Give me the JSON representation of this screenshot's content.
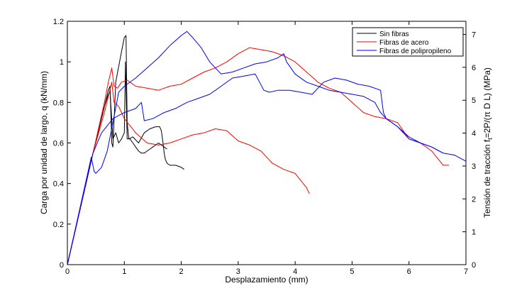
{
  "chart_data": {
    "type": "line",
    "title": "",
    "xlabel": "Desplazamiento (mm)",
    "ylabel": "Carga por unidad de largo, q (kN/mm)",
    "y2label": "Tensión de tracción f_t=2P/(π D L) (MPa)",
    "xlim": [
      0,
      7
    ],
    "ylim": [
      0,
      1.2
    ],
    "y2lim": [
      0,
      7.4
    ],
    "xticks": [
      "0",
      "1",
      "2",
      "3",
      "4",
      "5",
      "6",
      "7"
    ],
    "yticks": [
      "0",
      "0.2",
      "0.4",
      "0.6",
      "0.8",
      "1",
      "1.2"
    ],
    "y2ticks": [
      "0",
      "1",
      "2",
      "3",
      "4",
      "5",
      "6",
      "7"
    ],
    "grid": false,
    "legend": "top-right",
    "series": [
      {
        "name": "Sin fibras",
        "color": "#000000",
        "x": [
          0,
          0.45,
          0.65,
          0.72,
          0.75,
          0.78,
          0.8,
          0.85,
          0.95,
          1.0,
          1.03,
          1.05,
          1.08,
          1.15,
          1.25,
          1.35,
          1.45,
          1.55,
          1.62,
          1.65,
          1.68,
          1.7,
          1.72,
          1.75,
          1.8,
          1.9,
          2.0,
          2.05
        ],
        "y": [
          0,
          0.55,
          0.78,
          0.86,
          0.88,
          0.6,
          0.58,
          0.9,
          1.05,
          1.12,
          1.13,
          0.7,
          0.62,
          0.63,
          0.6,
          0.65,
          0.67,
          0.68,
          0.68,
          0.66,
          0.6,
          0.55,
          0.52,
          0.5,
          0.49,
          0.49,
          0.48,
          0.47
        ]
      },
      {
        "name": "Sin fibras",
        "color": "#000000",
        "x": [
          0,
          0.45,
          0.65,
          0.72,
          0.75,
          0.8,
          0.85,
          0.9,
          0.95,
          1.0,
          1.02,
          1.05,
          1.1,
          1.15,
          1.2,
          1.25,
          1.3,
          1.35,
          1.4,
          1.45,
          1.5,
          1.55,
          1.6,
          1.65,
          1.7,
          1.75
        ],
        "y": [
          0,
          0.55,
          0.78,
          0.84,
          0.85,
          0.62,
          0.65,
          0.6,
          0.62,
          0.65,
          1.0,
          0.62,
          0.62,
          0.6,
          0.58,
          0.56,
          0.55,
          0.55,
          0.56,
          0.57,
          0.58,
          0.59,
          0.6,
          0.59,
          0.58,
          0.57
        ]
      },
      {
        "name": "Fibras de acero",
        "color": "#ff0000",
        "x": [
          0,
          0.45,
          0.65,
          0.72,
          0.78,
          0.82,
          0.88,
          0.95,
          1.05,
          1.2,
          1.4,
          1.6,
          1.8,
          2.0,
          2.2,
          2.4,
          2.6,
          2.8,
          3.0,
          3.2,
          3.4,
          3.6,
          3.8,
          4.0,
          4.2,
          4.4,
          4.6,
          4.8,
          5.0,
          5.2,
          5.4,
          5.6,
          5.8,
          6.0,
          6.2,
          6.4,
          6.6,
          6.7
        ],
        "y": [
          0,
          0.55,
          0.8,
          0.9,
          0.97,
          0.88,
          0.87,
          0.9,
          0.91,
          0.88,
          0.87,
          0.86,
          0.88,
          0.89,
          0.92,
          0.95,
          0.97,
          1.0,
          1.04,
          1.07,
          1.06,
          1.05,
          1.03,
          1.0,
          0.95,
          0.9,
          0.87,
          0.85,
          0.8,
          0.75,
          0.73,
          0.72,
          0.7,
          0.62,
          0.6,
          0.56,
          0.49,
          0.49
        ]
      },
      {
        "name": "Fibras de acero",
        "color": "#ff0000",
        "x": [
          0,
          0.45,
          0.65,
          0.72,
          0.78,
          0.82,
          0.9,
          1.0,
          1.2,
          1.4,
          1.6,
          1.8,
          2.0,
          2.2,
          2.4,
          2.6,
          2.8,
          3.0,
          3.2,
          3.4,
          3.6,
          3.8,
          4.0,
          4.2,
          4.25
        ],
        "y": [
          0,
          0.55,
          0.75,
          0.83,
          0.9,
          0.8,
          0.78,
          0.72,
          0.65,
          0.6,
          0.59,
          0.6,
          0.62,
          0.64,
          0.65,
          0.67,
          0.66,
          0.61,
          0.59,
          0.56,
          0.5,
          0.47,
          0.45,
          0.38,
          0.35
        ]
      },
      {
        "name": "Fibras de polipropileno",
        "color": "#0000ff",
        "x": [
          0,
          0.42,
          0.47,
          0.5,
          0.6,
          0.7,
          0.8,
          0.9,
          1.0,
          1.2,
          1.4,
          1.6,
          1.8,
          2.0,
          2.1,
          2.2,
          2.35,
          2.5,
          2.7,
          2.9,
          3.1,
          3.3,
          3.5,
          3.7,
          3.8,
          3.85,
          4.0,
          4.2,
          4.4,
          4.6,
          4.8,
          5.0,
          5.2,
          5.4,
          5.5,
          5.6,
          5.8,
          6.0,
          6.2,
          6.4,
          6.6,
          6.8,
          7.0
        ],
        "y": [
          0,
          0.53,
          0.46,
          0.45,
          0.48,
          0.56,
          0.7,
          0.85,
          0.88,
          0.92,
          0.97,
          1.02,
          1.08,
          1.13,
          1.15,
          1.12,
          1.07,
          1.0,
          0.94,
          0.95,
          0.97,
          0.99,
          1.0,
          1.02,
          1.04,
          1.0,
          0.94,
          0.9,
          0.88,
          0.86,
          0.85,
          0.84,
          0.83,
          0.8,
          0.75,
          0.72,
          0.68,
          0.62,
          0.6,
          0.58,
          0.55,
          0.54,
          0.51
        ]
      },
      {
        "name": "Fibras de polipropileno",
        "color": "#0000ff",
        "x": [
          0,
          0.45,
          0.6,
          0.8,
          1.0,
          1.2,
          1.3,
          1.35,
          1.5,
          1.7,
          1.9,
          2.1,
          2.3,
          2.5,
          2.7,
          2.9,
          3.1,
          3.3,
          3.45,
          3.55,
          3.7,
          3.9,
          4.1,
          4.3,
          4.5,
          4.7,
          4.9,
          5.1,
          5.3,
          5.5,
          5.55,
          5.6,
          5.8,
          6.0,
          6.2,
          6.4,
          6.6
        ],
        "y": [
          0,
          0.55,
          0.65,
          0.72,
          0.75,
          0.77,
          0.8,
          0.71,
          0.72,
          0.75,
          0.77,
          0.8,
          0.82,
          0.84,
          0.88,
          0.92,
          0.93,
          0.94,
          0.86,
          0.85,
          0.86,
          0.86,
          0.85,
          0.84,
          0.9,
          0.92,
          0.91,
          0.89,
          0.88,
          0.86,
          0.75,
          0.72,
          0.68,
          0.63,
          0.6,
          0.58,
          0.55
        ]
      }
    ]
  }
}
